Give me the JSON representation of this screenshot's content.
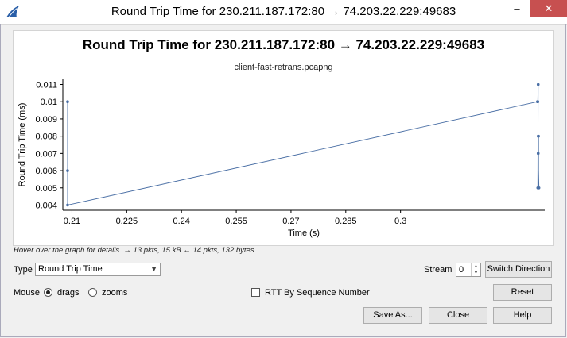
{
  "window": {
    "title": "Round Trip Time for 230.211.187.172:80 → 74.203.22.229:49683",
    "minimize_glyph": "–",
    "close_glyph": "✕"
  },
  "plot": {
    "hint": "Hover over the graph for details. → 13 pkts, 15 kB ← 14 pkts, 132 bytes"
  },
  "chart_data": {
    "type": "line",
    "title": "Round Trip Time for 230.211.187.172:80 → 74.203.22.229:49683",
    "subtitle": "client-fast-retrans.pcapng",
    "xlabel": "Time (s)",
    "ylabel": "Round Trip Time (ms)",
    "xlim": [
      0.2075,
      0.3395
    ],
    "ylim": [
      0.0037,
      0.0113
    ],
    "xticks": [
      0.21,
      0.225,
      0.24,
      0.255,
      0.27,
      0.285,
      0.3
    ],
    "xtick_labels": [
      "0.21",
      "0.225",
      "0.24",
      "0.255",
      "0.27",
      "0.285",
      "0.3"
    ],
    "yticks": [
      0.004,
      0.005,
      0.006,
      0.007,
      0.008,
      0.009,
      0.01,
      0.011
    ],
    "ytick_labels": [
      "0.004",
      "0.005",
      "0.006",
      "0.007",
      "0.008",
      "0.009",
      "0.01",
      "0.011"
    ],
    "color": "#4a6fa5",
    "grid": false,
    "series": [
      {
        "points": [
          [
            0.2088,
            0.01
          ],
          [
            0.2088,
            0.006
          ],
          [
            0.2088,
            0.004
          ],
          [
            0.3375,
            0.01
          ],
          [
            0.3376,
            0.01
          ],
          [
            0.3377,
            0.011
          ],
          [
            0.3376,
            0.005
          ],
          [
            0.3378,
            0.005
          ],
          [
            0.3378,
            0.008
          ],
          [
            0.3377,
            0.008
          ],
          [
            0.3377,
            0.007
          ],
          [
            0.3379,
            0.005
          ]
        ]
      }
    ]
  },
  "controls": {
    "type_label": "Type",
    "type_value": "Round Trip Time",
    "stream_label": "Stream",
    "stream_value": "0",
    "switch_direction": "Switch Direction",
    "mouse_label": "Mouse",
    "drags_label": "drags",
    "zooms_label": "zooms",
    "rtt_by_seq_label": "RTT By Sequence Number",
    "reset": "Reset",
    "save_as": "Save As...",
    "close": "Close",
    "help": "Help"
  }
}
